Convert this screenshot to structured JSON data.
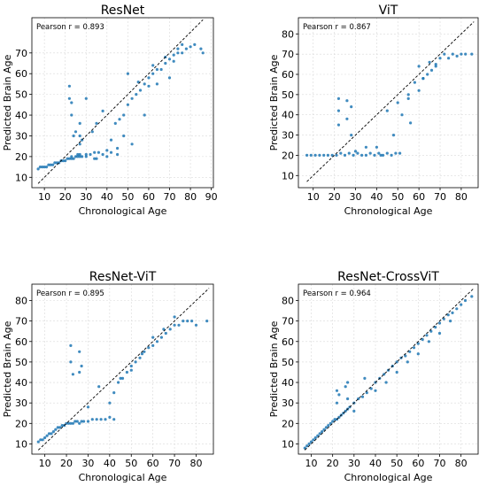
{
  "chart_data": [
    {
      "type": "scatter",
      "title": "ResNet",
      "xlabel": "Chronological Age",
      "ylabel": "Predicted Brain Age",
      "annotation": "Pearson r = 0.893",
      "xlim": [
        4,
        91
      ],
      "ylim": [
        5,
        87
      ],
      "xticks": [
        10,
        20,
        30,
        40,
        50,
        60,
        70,
        80,
        90
      ],
      "yticks": [
        10,
        20,
        30,
        40,
        50,
        60,
        70
      ],
      "grid": true,
      "point_color": "#1f77b4",
      "reference_line": {
        "style": "dashed",
        "color": "#000000",
        "from": [
          7,
          7
        ],
        "to": [
          86,
          86
        ]
      },
      "series": [
        {
          "x": [
            7,
            8,
            9,
            10,
            11,
            12,
            13,
            14,
            15,
            16,
            17,
            18,
            19,
            20,
            21,
            22,
            23,
            23,
            24,
            25,
            26,
            26,
            27,
            27,
            28,
            30,
            32,
            34,
            36,
            38,
            40,
            42,
            44,
            46,
            48,
            50,
            52,
            54,
            56,
            58,
            60,
            62,
            64,
            66,
            68,
            70,
            72,
            74,
            76,
            78,
            80,
            82,
            85,
            22,
            22,
            23,
            23,
            27,
            27,
            27,
            25,
            28,
            45,
            48,
            52,
            35,
            42,
            58,
            30,
            33,
            38,
            55,
            62,
            68,
            70,
            72,
            74,
            76,
            50,
            60,
            64,
            35,
            40,
            45,
            30,
            34,
            24,
            86
          ],
          "y": [
            14,
            15,
            15,
            15,
            15,
            16,
            16,
            16,
            17,
            17,
            17,
            18,
            18,
            18,
            19,
            19,
            20,
            19,
            19,
            20,
            20,
            21,
            20,
            21,
            20,
            21,
            21,
            22,
            22,
            21,
            23,
            22,
            36,
            38,
            40,
            45,
            48,
            50,
            52,
            55,
            58,
            60,
            62,
            62,
            65,
            67,
            69,
            70,
            70,
            72,
            73,
            74,
            72,
            54,
            48,
            46,
            40,
            36,
            30,
            26,
            32,
            28,
            24,
            30,
            26,
            36,
            28,
            40,
            48,
            32,
            42,
            56,
            64,
            68,
            58,
            66,
            72,
            74,
            60,
            54,
            55,
            19,
            20,
            21,
            20,
            19,
            30,
            70
          ]
        }
      ]
    },
    {
      "type": "scatter",
      "title": "ViT",
      "xlabel": "Chronological Age",
      "ylabel": "Predicted Brain Age",
      "annotation": "Pearson r = 0.867",
      "xlim": [
        3,
        88
      ],
      "ylim": [
        4,
        88
      ],
      "xticks": [
        10,
        20,
        30,
        40,
        50,
        60,
        70,
        80
      ],
      "yticks": [
        10,
        20,
        30,
        40,
        50,
        60,
        70,
        80
      ],
      "grid": true,
      "point_color": "#1f77b4",
      "reference_line": {
        "style": "dashed",
        "color": "#000000",
        "from": [
          7,
          7
        ],
        "to": [
          86,
          86
        ]
      },
      "series": [
        {
          "x": [
            7,
            9,
            11,
            13,
            15,
            17,
            19,
            21,
            23,
            25,
            27,
            29,
            31,
            33,
            35,
            37,
            39,
            41,
            43,
            45,
            47,
            49,
            51,
            55,
            60,
            62,
            64,
            66,
            68,
            70,
            72,
            74,
            76,
            78,
            80,
            82,
            85,
            22,
            22,
            22,
            26,
            26,
            28,
            28,
            45,
            50,
            55,
            58,
            60,
            65,
            40,
            48,
            52,
            56,
            62,
            68,
            30,
            35,
            42
          ],
          "y": [
            20,
            20,
            20,
            20,
            20,
            20,
            20,
            20,
            21,
            20,
            21,
            20,
            21,
            20,
            20,
            21,
            20,
            21,
            20,
            21,
            20,
            21,
            21,
            48,
            52,
            58,
            60,
            62,
            65,
            68,
            70,
            68,
            70,
            69,
            70,
            70,
            70,
            48,
            42,
            35,
            47,
            38,
            44,
            30,
            42,
            46,
            50,
            56,
            64,
            66,
            24,
            30,
            40,
            36,
            58,
            64,
            22,
            24,
            20
          ]
        }
      ]
    },
    {
      "type": "scatter",
      "title": "ResNet-ViT",
      "xlabel": "Chronological Age",
      "ylabel": "Predicted Brain Age",
      "annotation": "Pearson r = 0.895",
      "xlim": [
        4,
        88
      ],
      "ylim": [
        5,
        88
      ],
      "xticks": [
        10,
        20,
        30,
        40,
        50,
        60,
        70,
        80
      ],
      "yticks": [
        10,
        20,
        30,
        40,
        50,
        60,
        70,
        80
      ],
      "grid": true,
      "point_color": "#1f77b4",
      "reference_line": {
        "style": "dashed",
        "color": "#000000",
        "from": [
          7,
          7
        ],
        "to": [
          86,
          86
        ]
      },
      "series": [
        {
          "x": [
            7,
            8,
            9,
            10,
            11,
            12,
            13,
            14,
            15,
            16,
            17,
            18,
            19,
            20,
            21,
            22,
            23,
            24,
            25,
            26,
            27,
            28,
            30,
            32,
            34,
            36,
            38,
            40,
            42,
            44,
            46,
            48,
            50,
            52,
            54,
            56,
            58,
            60,
            62,
            64,
            66,
            68,
            70,
            72,
            74,
            76,
            78,
            80,
            85,
            22,
            22,
            23,
            26,
            26,
            27,
            35,
            45,
            50,
            55,
            60,
            65,
            70,
            30,
            40,
            42
          ],
          "y": [
            11,
            12,
            12,
            13,
            14,
            15,
            15,
            16,
            17,
            18,
            18,
            19,
            19,
            20,
            20,
            20,
            20,
            21,
            21,
            20,
            21,
            21,
            21,
            22,
            22,
            22,
            22,
            23,
            35,
            40,
            42,
            45,
            48,
            50,
            52,
            55,
            57,
            58,
            60,
            62,
            64,
            66,
            68,
            68,
            70,
            70,
            70,
            68,
            70,
            58,
            50,
            44,
            55,
            45,
            48,
            38,
            42,
            46,
            54,
            62,
            66,
            72,
            28,
            30,
            22
          ]
        }
      ]
    },
    {
      "type": "scatter",
      "title": "ResNet-CrossViT",
      "xlabel": "Chronological Age",
      "ylabel": "Predicted Brain Age",
      "annotation": "Pearson r = 0.964",
      "xlim": [
        4,
        88
      ],
      "ylim": [
        5,
        88
      ],
      "xticks": [
        10,
        20,
        30,
        40,
        50,
        60,
        70,
        80
      ],
      "yticks": [
        10,
        20,
        30,
        40,
        50,
        60,
        70,
        80
      ],
      "grid": true,
      "point_color": "#1f77b4",
      "reference_line": {
        "style": "dashed",
        "color": "#000000",
        "from": [
          7,
          7
        ],
        "to": [
          86,
          86
        ]
      },
      "series": [
        {
          "x": [
            7,
            8,
            9,
            10,
            11,
            12,
            13,
            14,
            15,
            16,
            17,
            18,
            19,
            20,
            21,
            22,
            23,
            24,
            25,
            26,
            27,
            28,
            30,
            32,
            34,
            36,
            38,
            40,
            42,
            44,
            46,
            48,
            50,
            52,
            54,
            56,
            58,
            60,
            62,
            64,
            66,
            68,
            70,
            72,
            74,
            76,
            78,
            80,
            82,
            85,
            22,
            22,
            23,
            26,
            27,
            27,
            40,
            45,
            50,
            55,
            60,
            65,
            70,
            75,
            35,
            30
          ],
          "y": [
            8,
            9,
            10,
            11,
            12,
            13,
            14,
            15,
            16,
            17,
            18,
            19,
            20,
            21,
            22,
            22,
            23,
            24,
            25,
            26,
            27,
            28,
            30,
            32,
            33,
            35,
            37,
            40,
            42,
            44,
            46,
            48,
            50,
            52,
            53,
            55,
            57,
            59,
            61,
            63,
            65,
            67,
            69,
            71,
            73,
            74,
            76,
            78,
            80,
            82,
            30,
            36,
            34,
            38,
            32,
            40,
            36,
            40,
            45,
            50,
            54,
            60,
            64,
            70,
            42,
            26
          ]
        }
      ]
    }
  ]
}
